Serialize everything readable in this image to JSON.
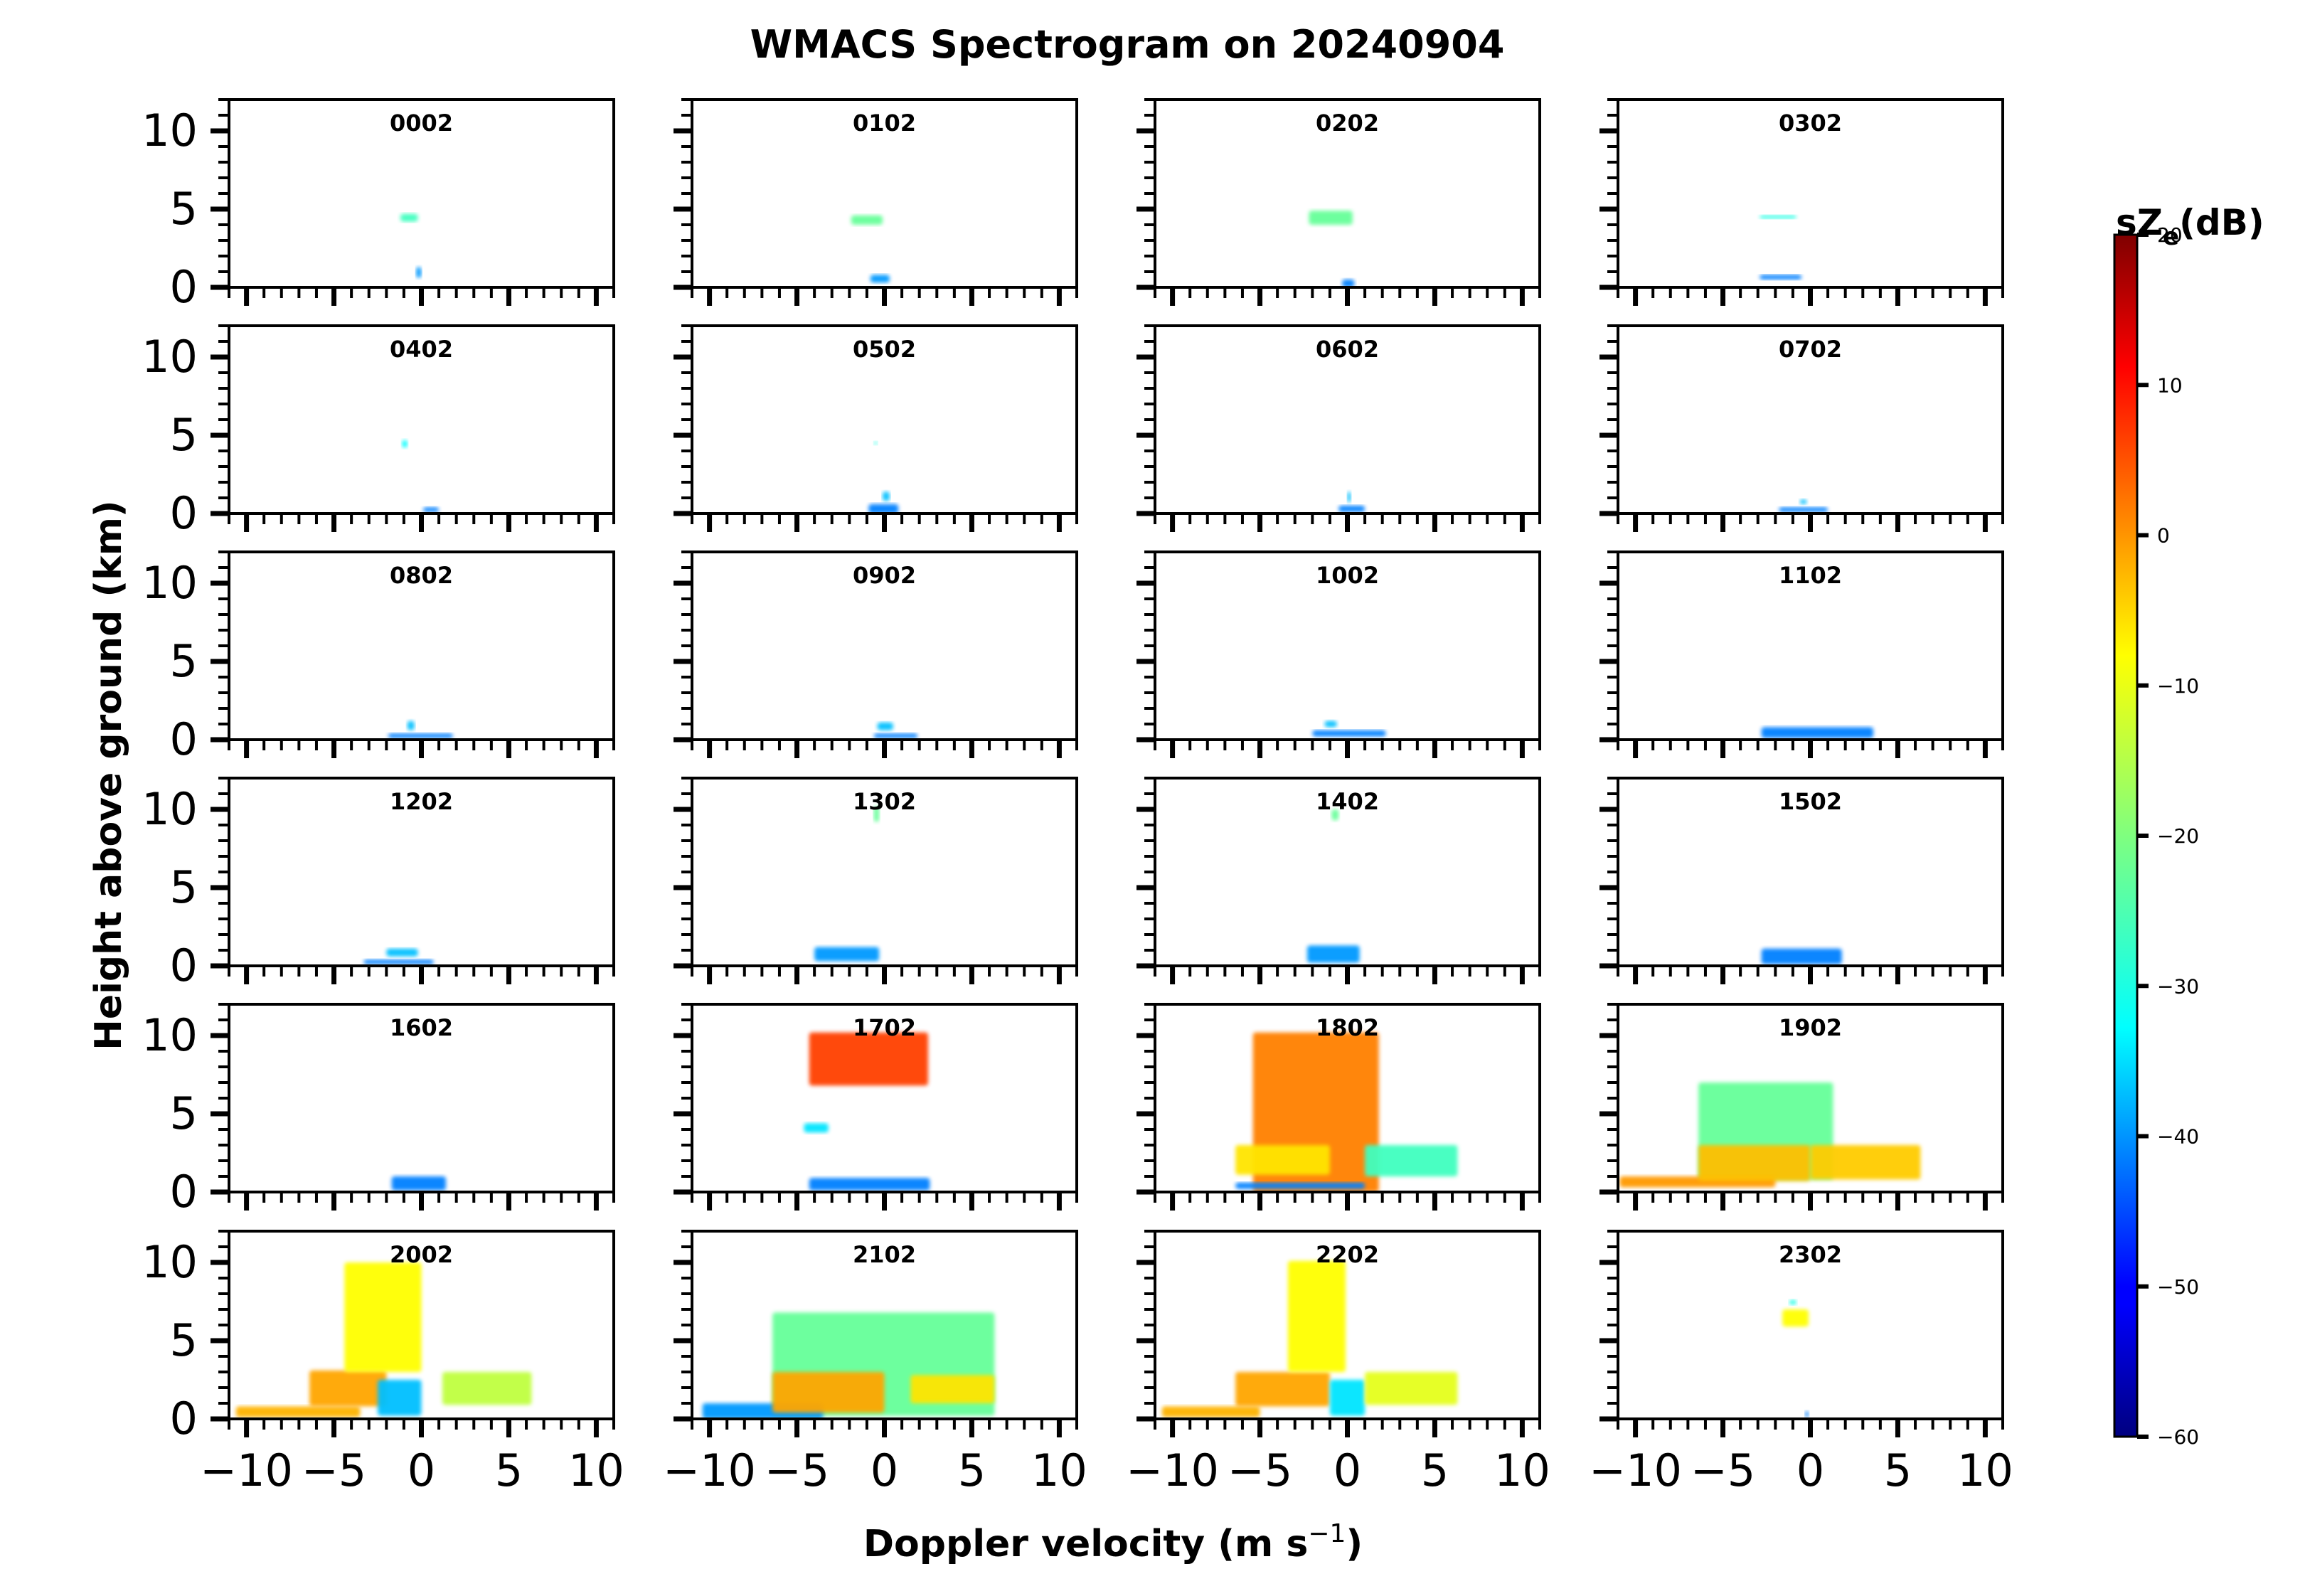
{
  "chart_data": {
    "type": "heatmap",
    "title": "WMACS Spectrogram on 20240904",
    "xlabel": "Doppler velocity (m s",
    "xlabel_superscript": "−1",
    "xlabel_suffix": ")",
    "ylabel": "Height above ground (km)",
    "xlim": [
      -11,
      11
    ],
    "ylim": [
      0,
      12
    ],
    "xticks": [
      -10,
      -5,
      0,
      5,
      10
    ],
    "xtick_labels": [
      "−10",
      "−5",
      "0",
      "5",
      "10"
    ],
    "yticks": [
      0,
      5,
      10
    ],
    "ytick_labels": [
      "0",
      "5",
      "10"
    ],
    "colorbar": {
      "label": "sZ",
      "label_subscript": "e",
      "label_suffix": "(dB)",
      "range": [
        -60,
        20
      ],
      "ticks": [
        20,
        10,
        0,
        -10,
        -20,
        -30,
        -40,
        -50,
        -60
      ],
      "tick_labels": [
        "20",
        "10",
        "0",
        "−10",
        "−20",
        "−30",
        "−40",
        "−50",
        "−60"
      ],
      "colormap": "jet"
    },
    "panels": [
      {
        "time": "0002",
        "blobs": [
          {
            "x": [
              -1.2,
              -0.2
            ],
            "y": [
              4.2,
              4.7
            ],
            "dbz": -25
          },
          {
            "x": [
              -0.3,
              0.0
            ],
            "y": [
              0.6,
              1.3
            ],
            "dbz": -38
          }
        ]
      },
      {
        "time": "0102",
        "blobs": [
          {
            "x": [
              -1.9,
              -0.1
            ],
            "y": [
              4.0,
              4.6
            ],
            "dbz": -22
          },
          {
            "x": [
              -0.8,
              0.3
            ],
            "y": [
              0.3,
              0.8
            ],
            "dbz": -38
          }
        ]
      },
      {
        "time": "0202",
        "blobs": [
          {
            "x": [
              -2.2,
              0.3
            ],
            "y": [
              4.0,
              4.9
            ],
            "dbz": -22
          },
          {
            "x": [
              -0.3,
              0.4
            ],
            "y": [
              0.0,
              0.5
            ],
            "dbz": -40
          }
        ]
      },
      {
        "time": "0302",
        "blobs": [
          {
            "x": [
              -2.9,
              -0.8
            ],
            "y": [
              4.4,
              4.6
            ],
            "dbz": -28
          },
          {
            "x": [
              -2.9,
              -0.5
            ],
            "y": [
              0.5,
              0.8
            ],
            "dbz": -40
          }
        ]
      },
      {
        "time": "0402",
        "blobs": [
          {
            "x": [
              -1.1,
              -0.8
            ],
            "y": [
              4.2,
              4.7
            ],
            "dbz": -30
          },
          {
            "x": [
              0.1,
              1.0
            ],
            "y": [
              0.1,
              0.4
            ],
            "dbz": -40
          }
        ]
      },
      {
        "time": "0502",
        "blobs": [
          {
            "x": [
              -0.6,
              -0.4
            ],
            "y": [
              4.4,
              4.6
            ],
            "dbz": -28
          },
          {
            "x": [
              -0.9,
              0.8
            ],
            "y": [
              0.0,
              0.6
            ],
            "dbz": -40
          },
          {
            "x": [
              -0.1,
              0.3
            ],
            "y": [
              0.8,
              1.4
            ],
            "dbz": -35
          }
        ]
      },
      {
        "time": "0602",
        "blobs": [
          {
            "x": [
              -0.5,
              1.0
            ],
            "y": [
              0.1,
              0.5
            ],
            "dbz": -40
          },
          {
            "x": [
              0.0,
              0.2
            ],
            "y": [
              0.7,
              1.4
            ],
            "dbz": -35
          }
        ]
      },
      {
        "time": "0702",
        "blobs": [
          {
            "x": [
              -1.8,
              1.0
            ],
            "y": [
              0.1,
              0.4
            ],
            "dbz": -40
          },
          {
            "x": [
              -0.6,
              -0.2
            ],
            "y": [
              0.6,
              0.9
            ],
            "dbz": -35
          }
        ]
      },
      {
        "time": "0802",
        "blobs": [
          {
            "x": [
              -1.9,
              1.8
            ],
            "y": [
              0.1,
              0.4
            ],
            "dbz": -40
          },
          {
            "x": [
              -0.8,
              -0.4
            ],
            "y": [
              0.6,
              1.2
            ],
            "dbz": -35
          }
        ]
      },
      {
        "time": "0902",
        "blobs": [
          {
            "x": [
              -0.6,
              1.9
            ],
            "y": [
              0.1,
              0.4
            ],
            "dbz": -40
          },
          {
            "x": [
              -0.4,
              0.5
            ],
            "y": [
              0.6,
              1.1
            ],
            "dbz": -35
          }
        ]
      },
      {
        "time": "1002",
        "blobs": [
          {
            "x": [
              -2.0,
              2.2
            ],
            "y": [
              0.2,
              0.6
            ],
            "dbz": -40
          },
          {
            "x": [
              -1.3,
              -0.6
            ],
            "y": [
              0.8,
              1.2
            ],
            "dbz": -35
          }
        ]
      },
      {
        "time": "1102",
        "blobs": [
          {
            "x": [
              -2.8,
              3.6
            ],
            "y": [
              0.1,
              0.8
            ],
            "dbz": -40
          }
        ]
      },
      {
        "time": "1202",
        "blobs": [
          {
            "x": [
              -3.3,
              0.7
            ],
            "y": [
              0.1,
              0.4
            ],
            "dbz": -40
          },
          {
            "x": [
              -2.0,
              -0.2
            ],
            "y": [
              0.6,
              1.1
            ],
            "dbz": -35
          }
        ]
      },
      {
        "time": "1302",
        "blobs": [
          {
            "x": [
              -4.0,
              -0.3
            ],
            "y": [
              0.3,
              1.2
            ],
            "dbz": -38
          },
          {
            "x": [
              -0.6,
              -0.3
            ],
            "y": [
              9.2,
              10.2
            ],
            "dbz": -22
          }
        ]
      },
      {
        "time": "1402",
        "blobs": [
          {
            "x": [
              -2.3,
              0.7
            ],
            "y": [
              0.2,
              1.3
            ],
            "dbz": -38
          },
          {
            "x": [
              -0.9,
              -0.5
            ],
            "y": [
              9.3,
              10.0
            ],
            "dbz": -22
          }
        ]
      },
      {
        "time": "1502",
        "blobs": [
          {
            "x": [
              -2.8,
              1.8
            ],
            "y": [
              0.1,
              1.1
            ],
            "dbz": -40
          }
        ]
      },
      {
        "time": "1602",
        "blobs": [
          {
            "x": [
              -1.7,
              1.4
            ],
            "y": [
              0.1,
              1.0
            ],
            "dbz": -40
          }
        ]
      },
      {
        "time": "1702",
        "blobs": [
          {
            "x": [
              -4.3,
              2.5
            ],
            "y": [
              6.8,
              10.2
            ],
            "dbz": 5
          },
          {
            "x": [
              -4.3,
              2.6
            ],
            "y": [
              0.1,
              0.9
            ],
            "dbz": -40
          },
          {
            "x": [
              -4.6,
              -3.2
            ],
            "y": [
              3.8,
              4.4
            ],
            "dbz": -32
          }
        ]
      },
      {
        "time": "1802",
        "blobs": [
          {
            "x": [
              -5.4,
              1.8
            ],
            "y": [
              0.0,
              10.2
            ],
            "dbz": 0
          },
          {
            "x": [
              -6.4,
              -1.0
            ],
            "y": [
              1.1,
              3.0
            ],
            "dbz": -8
          },
          {
            "x": [
              1.0,
              6.3
            ],
            "y": [
              1.0,
              3.0
            ],
            "dbz": -25
          },
          {
            "x": [
              -6.4,
              1.0
            ],
            "y": [
              0.2,
              0.6
            ],
            "dbz": -40
          }
        ]
      },
      {
        "time": "1902",
        "blobs": [
          {
            "x": [
              -6.4,
              1.3
            ],
            "y": [
              0.8,
              7.0
            ],
            "dbz": -22
          },
          {
            "x": [
              -10.9,
              -2.0
            ],
            "y": [
              0.3,
              1.0
            ],
            "dbz": -2
          },
          {
            "x": [
              -6.4,
              0.0
            ],
            "y": [
              0.7,
              3.0
            ],
            "dbz": -5
          },
          {
            "x": [
              0.0,
              6.3
            ],
            "y": [
              0.8,
              3.0
            ],
            "dbz": -6
          }
        ]
      },
      {
        "time": "2002",
        "blobs": [
          {
            "x": [
              -10.6,
              -3.5
            ],
            "y": [
              0.1,
              0.8
            ],
            "dbz": -4
          },
          {
            "x": [
              -6.4,
              -2.0
            ],
            "y": [
              0.8,
              3.1
            ],
            "dbz": -3
          },
          {
            "x": [
              -4.4,
              0.0
            ],
            "y": [
              3.0,
              10.0
            ],
            "dbz": -10
          },
          {
            "x": [
              -2.5,
              0.0
            ],
            "y": [
              0.2,
              2.5
            ],
            "dbz": -35
          },
          {
            "x": [
              1.2,
              6.3
            ],
            "y": [
              0.9,
              3.0
            ],
            "dbz": -15
          }
        ]
      },
      {
        "time": "2102",
        "blobs": [
          {
            "x": [
              -6.4,
              6.3
            ],
            "y": [
              0.2,
              6.8
            ],
            "dbz": -22
          },
          {
            "x": [
              -10.4,
              -3.5
            ],
            "y": [
              0.0,
              1.0
            ],
            "dbz": -38
          },
          {
            "x": [
              -6.4,
              0.0
            ],
            "y": [
              0.4,
              3.0
            ],
            "dbz": -3
          },
          {
            "x": [
              1.5,
              6.3
            ],
            "y": [
              1.0,
              2.8
            ],
            "dbz": -8
          }
        ]
      },
      {
        "time": "2202",
        "blobs": [
          {
            "x": [
              -10.6,
              -5.0
            ],
            "y": [
              0.1,
              0.8
            ],
            "dbz": -4
          },
          {
            "x": [
              -6.4,
              -1.0
            ],
            "y": [
              0.8,
              3.0
            ],
            "dbz": -3
          },
          {
            "x": [
              -3.4,
              -0.1
            ],
            "y": [
              3.0,
              10.1
            ],
            "dbz": -10
          },
          {
            "x": [
              -1.0,
              1.0
            ],
            "y": [
              0.2,
              2.5
            ],
            "dbz": -32
          },
          {
            "x": [
              1.0,
              6.3
            ],
            "y": [
              0.9,
              3.0
            ],
            "dbz": -12
          }
        ]
      },
      {
        "time": "2302",
        "blobs": [
          {
            "x": [
              -1.6,
              -0.1
            ],
            "y": [
              5.9,
              7.0
            ],
            "dbz": -10
          },
          {
            "x": [
              -1.2,
              -0.8
            ],
            "y": [
              7.3,
              7.6
            ],
            "dbz": -28
          },
          {
            "x": [
              -0.3,
              -0.1
            ],
            "y": [
              0.1,
              0.5
            ],
            "dbz": -40
          }
        ]
      }
    ]
  }
}
